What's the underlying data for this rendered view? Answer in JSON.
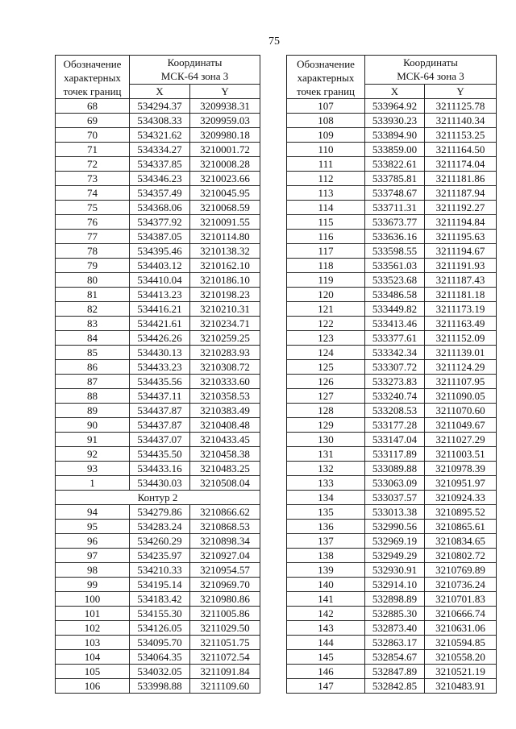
{
  "page_number": "75",
  "header": {
    "point_label": "Обозначение характерных точек границ",
    "point_label_lines": [
      "Обозначение",
      "характерных",
      "точек границ"
    ],
    "coords_title": "Координаты",
    "coords_system": "МСК-64 зона 3",
    "x": "X",
    "y": "Y"
  },
  "left_table": {
    "rows": [
      {
        "p": "68",
        "x": "534294.37",
        "y": "3209938.31"
      },
      {
        "p": "69",
        "x": "534308.33",
        "y": "3209959.03"
      },
      {
        "p": "70",
        "x": "534321.62",
        "y": "3209980.18"
      },
      {
        "p": "71",
        "x": "534334.27",
        "y": "3210001.72"
      },
      {
        "p": "72",
        "x": "534337.85",
        "y": "3210008.28"
      },
      {
        "p": "73",
        "x": "534346.23",
        "y": "3210023.66"
      },
      {
        "p": "74",
        "x": "534357.49",
        "y": "3210045.95"
      },
      {
        "p": "75",
        "x": "534368.06",
        "y": "3210068.59"
      },
      {
        "p": "76",
        "x": "534377.92",
        "y": "3210091.55"
      },
      {
        "p": "77",
        "x": "534387.05",
        "y": "3210114.80"
      },
      {
        "p": "78",
        "x": "534395.46",
        "y": "3210138.32"
      },
      {
        "p": "79",
        "x": "534403.12",
        "y": "3210162.10"
      },
      {
        "p": "80",
        "x": "534410.04",
        "y": "3210186.10"
      },
      {
        "p": "81",
        "x": "534413.23",
        "y": "3210198.23"
      },
      {
        "p": "82",
        "x": "534416.21",
        "y": "3210210.31"
      },
      {
        "p": "83",
        "x": "534421.61",
        "y": "3210234.71"
      },
      {
        "p": "84",
        "x": "534426.26",
        "y": "3210259.25"
      },
      {
        "p": "85",
        "x": "534430.13",
        "y": "3210283.93"
      },
      {
        "p": "86",
        "x": "534433.23",
        "y": "3210308.72"
      },
      {
        "p": "87",
        "x": "534435.56",
        "y": "3210333.60"
      },
      {
        "p": "88",
        "x": "534437.11",
        "y": "3210358.53"
      },
      {
        "p": "89",
        "x": "534437.87",
        "y": "3210383.49"
      },
      {
        "p": "90",
        "x": "534437.87",
        "y": "3210408.48"
      },
      {
        "p": "91",
        "x": "534437.07",
        "y": "3210433.45"
      },
      {
        "p": "92",
        "x": "534435.50",
        "y": "3210458.38"
      },
      {
        "p": "93",
        "x": "534433.16",
        "y": "3210483.25"
      },
      {
        "p": "1",
        "x": "534430.03",
        "y": "3210508.04"
      },
      {
        "section": "Контур 2"
      },
      {
        "p": "94",
        "x": "534279.86",
        "y": "3210866.62"
      },
      {
        "p": "95",
        "x": "534283.24",
        "y": "3210868.53"
      },
      {
        "p": "96",
        "x": "534260.29",
        "y": "3210898.34"
      },
      {
        "p": "97",
        "x": "534235.97",
        "y": "3210927.04"
      },
      {
        "p": "98",
        "x": "534210.33",
        "y": "3210954.57"
      },
      {
        "p": "99",
        "x": "534195.14",
        "y": "3210969.70"
      },
      {
        "p": "100",
        "x": "534183.42",
        "y": "3210980.86"
      },
      {
        "p": "101",
        "x": "534155.30",
        "y": "3211005.86"
      },
      {
        "p": "102",
        "x": "534126.05",
        "y": "3211029.50"
      },
      {
        "p": "103",
        "x": "534095.70",
        "y": "3211051.75"
      },
      {
        "p": "104",
        "x": "534064.35",
        "y": "3211072.54"
      },
      {
        "p": "105",
        "x": "534032.05",
        "y": "3211091.84"
      },
      {
        "p": "106",
        "x": "533998.88",
        "y": "3211109.60"
      }
    ]
  },
  "right_table": {
    "rows": [
      {
        "p": "107",
        "x": "533964.92",
        "y": "3211125.78"
      },
      {
        "p": "108",
        "x": "533930.23",
        "y": "3211140.34"
      },
      {
        "p": "109",
        "x": "533894.90",
        "y": "3211153.25"
      },
      {
        "p": "110",
        "x": "533859.00",
        "y": "3211164.50"
      },
      {
        "p": "111",
        "x": "533822.61",
        "y": "3211174.04"
      },
      {
        "p": "112",
        "x": "533785.81",
        "y": "3211181.86"
      },
      {
        "p": "113",
        "x": "533748.67",
        "y": "3211187.94"
      },
      {
        "p": "114",
        "x": "533711.31",
        "y": "3211192.27"
      },
      {
        "p": "115",
        "x": "533673.77",
        "y": "3211194.84"
      },
      {
        "p": "116",
        "x": "533636.16",
        "y": "3211195.63"
      },
      {
        "p": "117",
        "x": "533598.55",
        "y": "3211194.67"
      },
      {
        "p": "118",
        "x": "533561.03",
        "y": "3211191.93"
      },
      {
        "p": "119",
        "x": "533523.68",
        "y": "3211187.43"
      },
      {
        "p": "120",
        "x": "533486.58",
        "y": "3211181.18"
      },
      {
        "p": "121",
        "x": "533449.82",
        "y": "3211173.19"
      },
      {
        "p": "122",
        "x": "533413.46",
        "y": "3211163.49"
      },
      {
        "p": "123",
        "x": "533377.61",
        "y": "3211152.09"
      },
      {
        "p": "124",
        "x": "533342.34",
        "y": "3211139.01"
      },
      {
        "p": "125",
        "x": "533307.72",
        "y": "3211124.29"
      },
      {
        "p": "126",
        "x": "533273.83",
        "y": "3211107.95"
      },
      {
        "p": "127",
        "x": "533240.74",
        "y": "3211090.05"
      },
      {
        "p": "128",
        "x": "533208.53",
        "y": "3211070.60"
      },
      {
        "p": "129",
        "x": "533177.28",
        "y": "3211049.67"
      },
      {
        "p": "130",
        "x": "533147.04",
        "y": "3211027.29"
      },
      {
        "p": "131",
        "x": "533117.89",
        "y": "3211003.51"
      },
      {
        "p": "132",
        "x": "533089.88",
        "y": "3210978.39"
      },
      {
        "p": "133",
        "x": "533063.09",
        "y": "3210951.97"
      },
      {
        "p": "134",
        "x": "533037.57",
        "y": "3210924.33"
      },
      {
        "p": "135",
        "x": "533013.38",
        "y": "3210895.52"
      },
      {
        "p": "136",
        "x": "532990.56",
        "y": "3210865.61"
      },
      {
        "p": "137",
        "x": "532969.19",
        "y": "3210834.65"
      },
      {
        "p": "138",
        "x": "532949.29",
        "y": "3210802.72"
      },
      {
        "p": "139",
        "x": "532930.91",
        "y": "3210769.89"
      },
      {
        "p": "140",
        "x": "532914.10",
        "y": "3210736.24"
      },
      {
        "p": "141",
        "x": "532898.89",
        "y": "3210701.83"
      },
      {
        "p": "142",
        "x": "532885.30",
        "y": "3210666.74"
      },
      {
        "p": "143",
        "x": "532873.40",
        "y": "3210631.06"
      },
      {
        "p": "144",
        "x": "532863.17",
        "y": "3210594.85"
      },
      {
        "p": "145",
        "x": "532854.67",
        "y": "3210558.20"
      },
      {
        "p": "146",
        "x": "532847.89",
        "y": "3210521.19"
      },
      {
        "p": "147",
        "x": "532842.85",
        "y": "3210483.91"
      }
    ]
  }
}
